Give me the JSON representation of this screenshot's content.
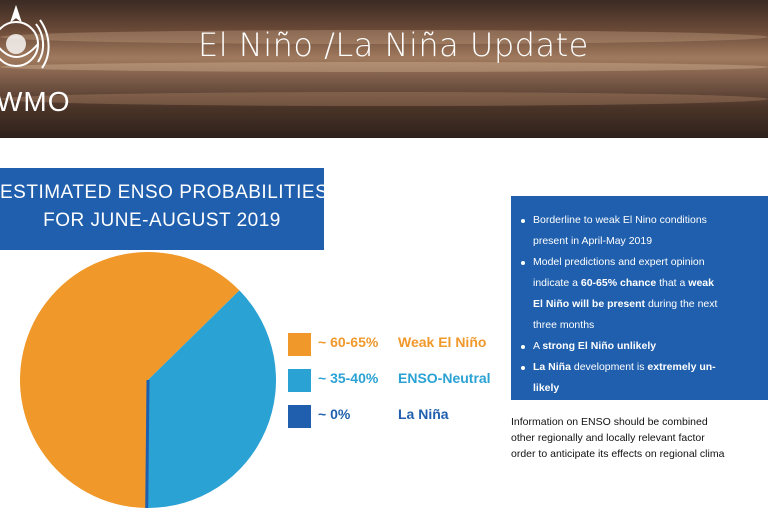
{
  "banner": {
    "logo_text": "WMO",
    "title": "El Niño /La Niña Update"
  },
  "chart_title": {
    "line1": "ESTIMATED ENSO PROBABILITIES",
    "line2": "FOR JUNE-AUGUST 2019"
  },
  "chart_data": {
    "type": "pie",
    "title": "ESTIMATED ENSO PROBABILITIES FOR JUNE-AUGUST 2019",
    "legend_position": "right",
    "slices": [
      {
        "label": "Weak El Niño",
        "pct_label": "~ 60-65%",
        "value": 62.5,
        "color": "#f0982a"
      },
      {
        "label": "ENSO-Neutral",
        "pct_label": "~ 35-40%",
        "value": 37.5,
        "color": "#2aa2d4"
      },
      {
        "label": "La Niña",
        "pct_label": "~ 0%",
        "value": 0,
        "color": "#1f5fad"
      }
    ]
  },
  "legend_colors": {
    "weak_el_nino_text": "#f0982a",
    "enso_neutral_text": "#2aa2d4",
    "la_nina_text": "#1f5fad"
  },
  "info_bullets": [
    {
      "lines": [
        "Borderline to weak El Nino conditions",
        "present in April-May 2019"
      ]
    },
    {
      "lines": [
        "Model predictions and expert opinion",
        "indicate a 60-65% chance that a weak",
        "El Niño will be present during the next",
        "three months"
      ]
    },
    {
      "lines": [
        "A strong El Niño unlikely"
      ]
    },
    {
      "lines": [
        "La Niña development is extremely un-",
        "likely"
      ]
    }
  ],
  "footnote": {
    "lines": [
      "Information on ENSO should be combined",
      "other regionally and locally relevant factor",
      "order to anticipate its effects on regional clima"
    ]
  }
}
